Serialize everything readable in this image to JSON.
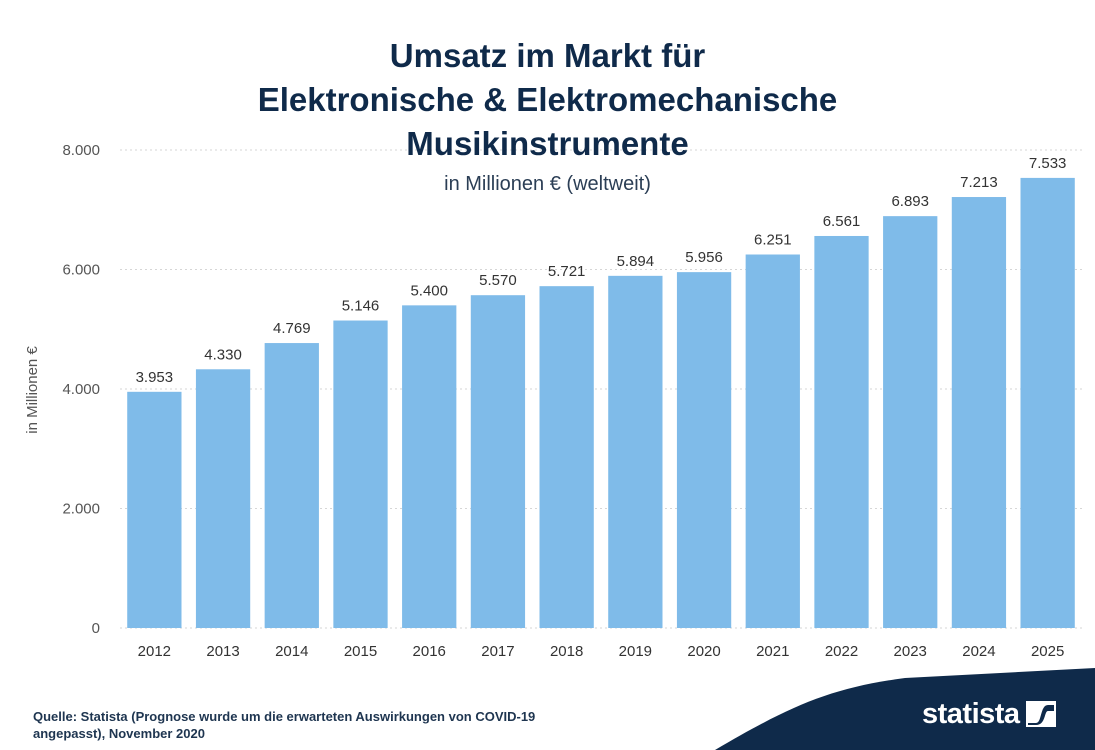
{
  "chart_data": {
    "type": "bar",
    "title_lines": [
      "Umsatz im Markt für",
      "Elektronische & Elektromechanische",
      "Musikinstrumente"
    ],
    "subtitle": "in Millionen € (weltweit)",
    "ylabel": "in Millionen €",
    "xlabel": "",
    "categories": [
      "2012",
      "2013",
      "2014",
      "2015",
      "2016",
      "2017",
      "2018",
      "2019",
      "2020",
      "2021",
      "2022",
      "2023",
      "2024",
      "2025"
    ],
    "values": [
      3953,
      4330,
      4769,
      5146,
      5400,
      5570,
      5721,
      5894,
      5956,
      6251,
      6561,
      6893,
      7213,
      7533
    ],
    "value_labels": [
      "3.953",
      "4.330",
      "4.769",
      "5.146",
      "5.400",
      "5.570",
      "5.721",
      "5.894",
      "5.956",
      "6.251",
      "6.561",
      "6.893",
      "7.213",
      "7.533"
    ],
    "ylim": [
      0,
      8000
    ],
    "yticks": [
      0,
      2000,
      4000,
      6000,
      8000
    ],
    "ytick_labels": [
      "0",
      "2.000",
      "4.000",
      "6.000",
      "8.000"
    ],
    "grid": true,
    "bar_color": "#7fbbe9"
  },
  "footer": {
    "source_line1": "Quelle: Statista (Prognose wurde um die erwarteten Auswirkungen von COVID-19",
    "source_line2": "angepasst), November 2020"
  },
  "brand": {
    "name": "statista",
    "icon": "statista-logo-icon",
    "color": "#0f2a4a"
  }
}
